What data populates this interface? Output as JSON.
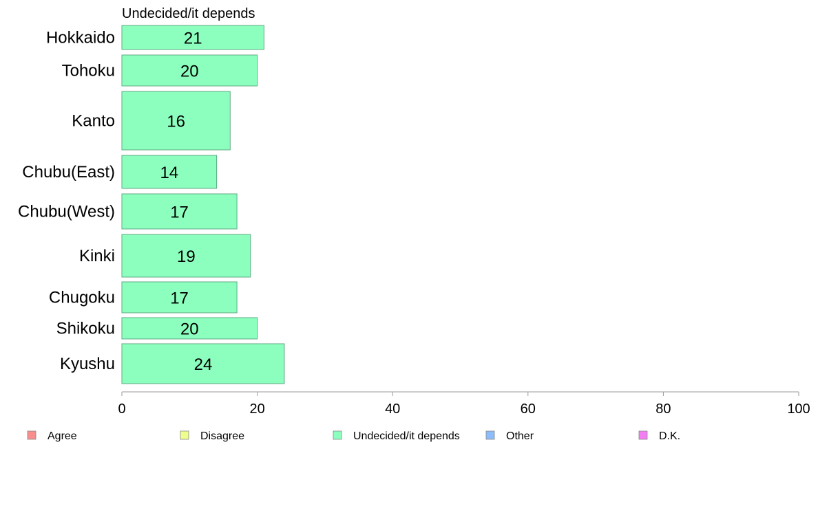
{
  "chart_data": {
    "type": "bar",
    "orientation": "horizontal",
    "title": "Undecided/it depends",
    "categories": [
      "Hokkaido",
      "Tohoku",
      "Kanto",
      "Chubu(East)",
      "Chubu(West)",
      "Kinki",
      "Chugoku",
      "Shikoku",
      "Kyushu"
    ],
    "series": [
      {
        "name": "Undecided/it depends",
        "values": [
          21,
          20,
          16,
          14,
          17,
          19,
          17,
          20,
          24
        ]
      }
    ],
    "value_labels": [
      "21",
      "20",
      "16",
      "14",
      "17",
      "19",
      "17",
      "20",
      "24"
    ],
    "xlim": [
      0,
      100
    ],
    "xticks": [
      "0",
      "20",
      "40",
      "60",
      "80",
      "100"
    ],
    "grid": false,
    "legend_position": "bottom",
    "legend": [
      {
        "label": "Agree",
        "color": "#f98e8e"
      },
      {
        "label": "Disagree",
        "color": "#eeff8c"
      },
      {
        "label": "Undecided/it depends",
        "color": "#8cffbe"
      },
      {
        "label": "Other",
        "color": "#8cbcf9"
      },
      {
        "label": "D.K.",
        "color": "#f27ef2"
      }
    ],
    "bar_color": "#8cffbe",
    "bar_edge_color": "#5fa883"
  }
}
